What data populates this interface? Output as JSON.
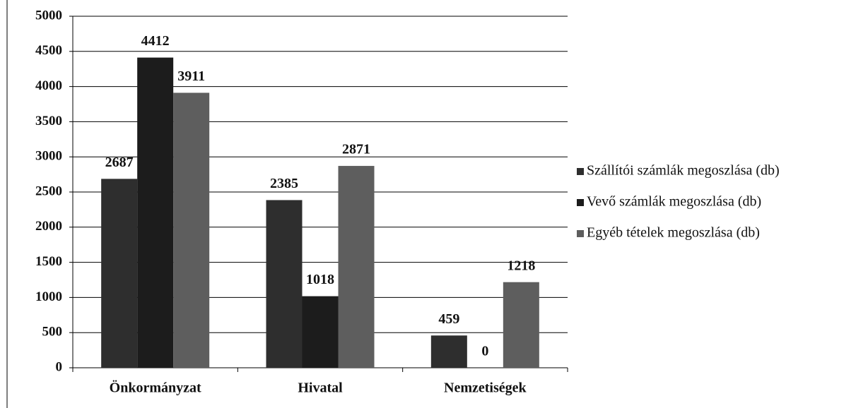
{
  "chart_data": {
    "type": "bar",
    "categories": [
      "Önkormányzat",
      "Hivatal",
      "Nemzetiségek"
    ],
    "series": [
      {
        "name": "Szállítói számlák megoszlása (db)",
        "color": "#2e2e2e",
        "values": [
          2687,
          2385,
          459
        ]
      },
      {
        "name": "Vevő számlák megoszlása (db)",
        "color": "#1c1c1c",
        "values": [
          4412,
          1018,
          0
        ]
      },
      {
        "name": "Egyéb tételek megoszlása (db)",
        "color": "#5e5e5e",
        "values": [
          3911,
          2871,
          1218
        ]
      }
    ],
    "ylim": [
      0,
      5000
    ],
    "yticks": [
      0,
      500,
      1000,
      1500,
      2000,
      2500,
      3000,
      3500,
      4000,
      4500,
      5000
    ],
    "grid": true,
    "legend": "right"
  }
}
